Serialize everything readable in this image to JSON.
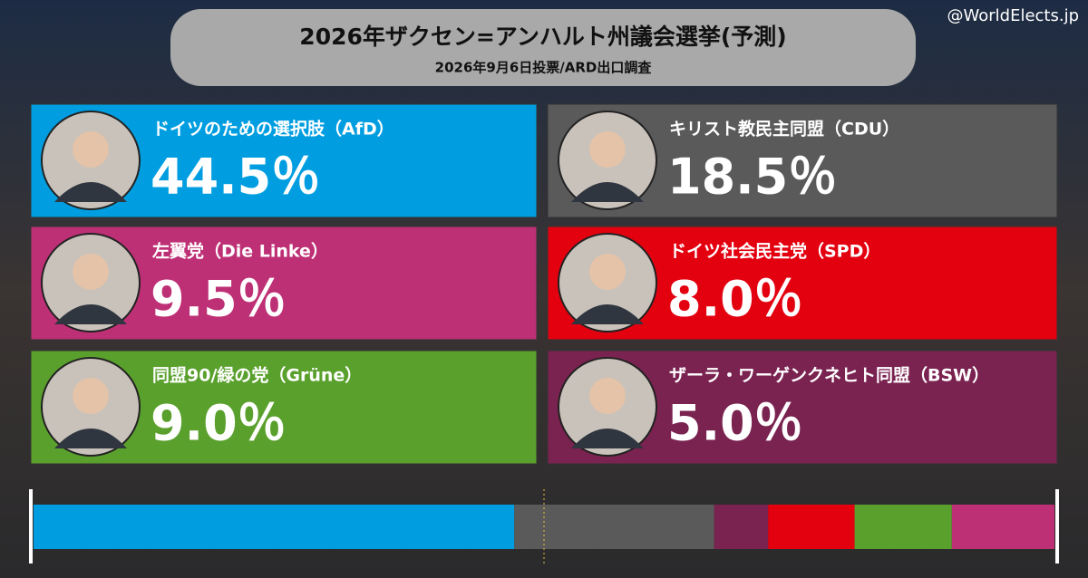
{
  "chart_data": {
    "type": "bar",
    "title": "2026年ザクセン=アンハルト州議会選挙(予測)",
    "subtitle": "2026年9月6日投票/ARD出口調査",
    "source": "@WorldElects.jp",
    "categories": [
      "ドイツのための選択肢（AfD）",
      "キリスト教民主同盟（CDU）",
      "ザーラ・ワーゲンクネヒト同盟（BSW）",
      "ドイツ社会民主党（SPD）",
      "同盟90/緑の党（Grüne）",
      "左翼党（Die Linke）"
    ],
    "values": [
      44.5,
      18.5,
      5.0,
      8.0,
      9.0,
      9.5
    ],
    "value_labels": [
      "44.5％",
      "18.5％",
      "5.0％",
      "8.0％",
      "9.0％",
      "9.5％"
    ],
    "colors": [
      "#009ee0",
      "#5a5a5a",
      "#7a2250",
      "#e3000f",
      "#5aa02c",
      "#be3075"
    ]
  }
}
